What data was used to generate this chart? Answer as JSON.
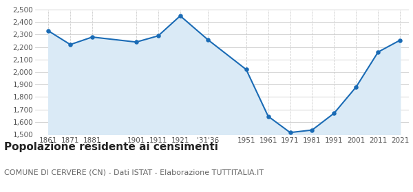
{
  "x_positions": [
    1861,
    1871,
    1881,
    1901,
    1911,
    1921,
    1933.5,
    1951,
    1961,
    1971,
    1981,
    1991,
    2001,
    2011,
    2021
  ],
  "values": [
    2330,
    2220,
    2280,
    2240,
    2290,
    2450,
    2260,
    2020,
    1645,
    1515,
    1535,
    1670,
    1880,
    2160,
    2255
  ],
  "line_color": "#1a6bb5",
  "fill_color": "#daeaf6",
  "marker_color": "#1a6bb5",
  "background_color": "#ffffff",
  "grid_color": "#cccccc",
  "ylim": [
    1500,
    2500
  ],
  "yticks": [
    1500,
    1600,
    1700,
    1800,
    1900,
    2000,
    2100,
    2200,
    2300,
    2400,
    2500
  ],
  "xlim_min": 1855,
  "xlim_max": 2025,
  "tick_label_positions": [
    1861,
    1871,
    1881,
    1901,
    1911,
    1921,
    1933.5,
    1951,
    1961,
    1971,
    1981,
    1991,
    2001,
    2011,
    2021
  ],
  "tick_label_texts": [
    "1861",
    "1871",
    "1881",
    "1901",
    "1911",
    "1921",
    "'31'36",
    "1951",
    "1961",
    "1971",
    "1981",
    "1991",
    "2001",
    "2011",
    "2021"
  ],
  "title": "Popolazione residente ai censimenti",
  "title_fontsize": 11,
  "subtitle": "COMUNE DI CERVERE (CN) - Dati ISTAT - Elaborazione TUTTITALIA.IT",
  "subtitle_fontsize": 8
}
